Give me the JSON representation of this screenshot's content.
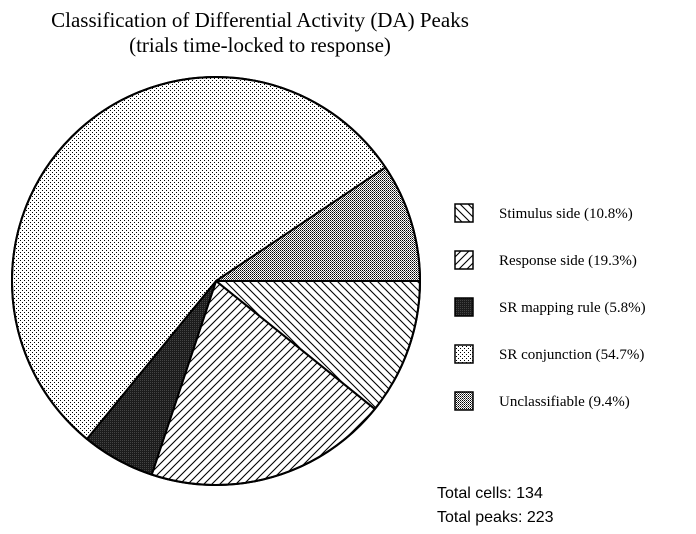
{
  "chart_data": {
    "type": "pie",
    "title": "Classification of Differential Activity (DA) Peaks",
    "subtitle": "(trials time-locked to response)",
    "slices": [
      {
        "label": "Stimulus side",
        "display": "Stimulus side (10.8%)",
        "value": 10.8,
        "pattern": "hatch-back",
        "color": "#000000"
      },
      {
        "label": "Response side",
        "display": "Response side (19.3%)",
        "value": 19.3,
        "pattern": "hatch-fwd",
        "color": "#000000"
      },
      {
        "label": "SR mapping rule",
        "display": "SR mapping rule (5.8%)",
        "value": 5.8,
        "pattern": "solid-dark",
        "color": "#1a1a1a"
      },
      {
        "label": "SR conjunction",
        "display": "SR conjunction (54.7%)",
        "value": 54.7,
        "pattern": "dots-light",
        "color": "#000000"
      },
      {
        "label": "Unclassifiable",
        "display": "Unclassifiable (9.4%)",
        "value": 9.4,
        "pattern": "dots-medium",
        "color": "#000000"
      }
    ],
    "legend_position": "right",
    "start_angle_deg": 0,
    "direction": "clockwise"
  },
  "totals": {
    "cells": "Total cells: 134",
    "peaks": "Total peaks: 223"
  }
}
